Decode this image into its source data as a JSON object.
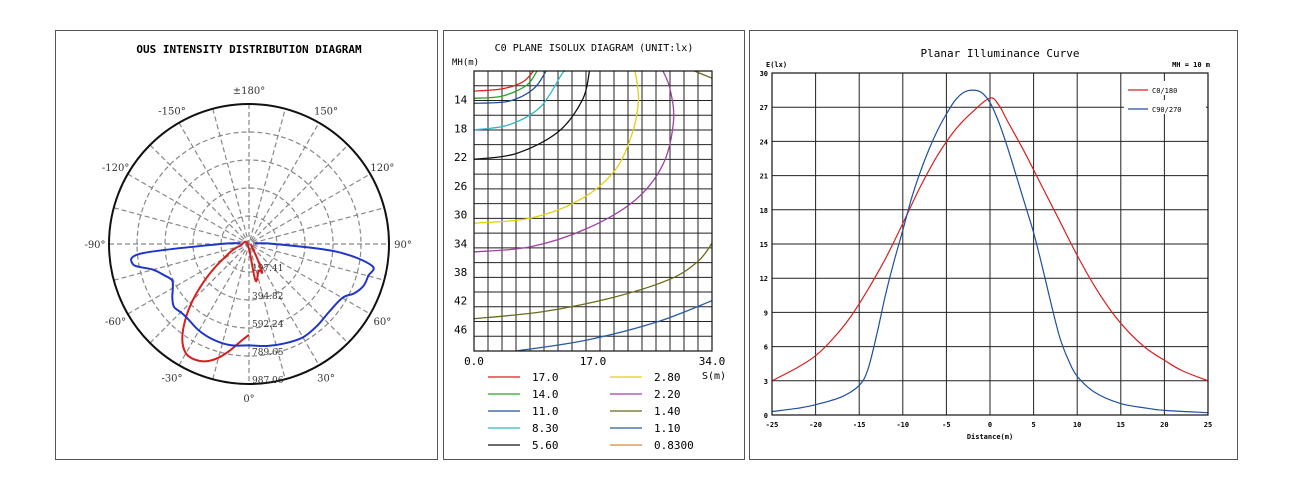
{
  "chart_data": [
    {
      "type": "polar",
      "title": "OUS INTENSITY DISTRIBUTION DIAGRAM",
      "angle_labels": [
        "±180°",
        "150°",
        "120°",
        "90°",
        "60°",
        "30°",
        "0°",
        "-30°",
        "-60°",
        "-90°",
        "-120°",
        "-150°"
      ],
      "radial_labels": [
        "197.41",
        "394.82",
        "592.24",
        "789.65",
        "987.06"
      ],
      "rmax": 987.06,
      "series": [
        {
          "color": "#d62020",
          "points": [
            [
              0,
              640
            ],
            [
              -5,
              690
            ],
            [
              -10,
              760
            ],
            [
              -15,
              830
            ],
            [
              -20,
              880
            ],
            [
              -25,
              900
            ],
            [
              -30,
              890
            ],
            [
              -35,
              820
            ],
            [
              -40,
              700
            ],
            [
              -45,
              560
            ],
            [
              -50,
              420
            ],
            [
              -55,
              300
            ],
            [
              -60,
              210
            ],
            [
              -70,
              120
            ],
            [
              -80,
              60
            ],
            [
              -90,
              10
            ],
            [
              10,
              260
            ],
            [
              20,
              200
            ],
            [
              25,
              220
            ],
            [
              30,
              110
            ],
            [
              40,
              40
            ],
            [
              60,
              20
            ],
            [
              90,
              10
            ]
          ]
        },
        {
          "color": "#1f35c8",
          "points": [
            [
              -95,
              60
            ],
            [
              -90,
              200
            ],
            [
              -85,
              760
            ],
            [
              -80,
              830
            ],
            [
              -75,
              700
            ],
            [
              -70,
              640
            ],
            [
              -65,
              600
            ],
            [
              -60,
              620
            ],
            [
              -55,
              660
            ],
            [
              -50,
              690
            ],
            [
              -45,
              680
            ],
            [
              -40,
              680
            ],
            [
              -30,
              705
            ],
            [
              -20,
              720
            ],
            [
              -10,
              725
            ],
            [
              0,
              715
            ],
            [
              10,
              730
            ],
            [
              20,
              745
            ],
            [
              30,
              760
            ],
            [
              40,
              750
            ],
            [
              50,
              740
            ],
            [
              60,
              760
            ],
            [
              65,
              820
            ],
            [
              70,
              860
            ],
            [
              75,
              870
            ],
            [
              80,
              880
            ],
            [
              85,
              620
            ],
            [
              90,
              180
            ],
            [
              95,
              40
            ]
          ]
        }
      ]
    },
    {
      "type": "line",
      "title": "C0 PLANE ISOLUX DIAGRAM (UNIT:lx)",
      "ylabel": "MH(m)",
      "xlabel": "S(m)",
      "x_ticks": [
        "0.0",
        "17.0",
        "34.0"
      ],
      "y_ticks": [
        "14",
        "18",
        "22",
        "26",
        "30",
        "34",
        "38",
        "42",
        "46"
      ],
      "xlim": [
        0,
        34
      ],
      "ylim": [
        10,
        49
      ],
      "legend": [
        {
          "label": "17.0",
          "color": "#d62020"
        },
        {
          "label": "14.0",
          "color": "#2aa02a"
        },
        {
          "label": "11.0",
          "color": "#1f4ea0"
        },
        {
          "label": "8.30",
          "color": "#33b6c8"
        },
        {
          "label": "5.60",
          "color": "#111111"
        },
        {
          "label": "2.80",
          "color": "#e0d010"
        },
        {
          "label": "2.20",
          "color": "#a040a0"
        },
        {
          "label": "1.40",
          "color": "#6b6b1a"
        },
        {
          "label": "1.10",
          "color": "#2a5aa0"
        },
        {
          "label": "0.8300",
          "color": "#d08a30"
        }
      ],
      "series": [
        {
          "color": "#d62020",
          "points": [
            [
              0,
              12.8
            ],
            [
              4,
              12.5
            ],
            [
              7,
              11.5
            ],
            [
              8.5,
              10
            ]
          ]
        },
        {
          "color": "#2aa02a",
          "points": [
            [
              0,
              13.8
            ],
            [
              4,
              13.5
            ],
            [
              7.5,
              12
            ],
            [
              9,
              10
            ]
          ]
        },
        {
          "color": "#1f4ea0",
          "points": [
            [
              0,
              14.5
            ],
            [
              5,
              14.2
            ],
            [
              8.5,
              12.5
            ],
            [
              10.3,
              10
            ]
          ]
        },
        {
          "color": "#33b6c8",
          "points": [
            [
              0,
              18.2
            ],
            [
              5,
              17.5
            ],
            [
              9.5,
              15
            ],
            [
              12.5,
              10.5
            ],
            [
              13,
              10
            ]
          ]
        },
        {
          "color": "#111111",
          "points": [
            [
              0,
              22.3
            ],
            [
              6,
              21.5
            ],
            [
              12,
              18.5
            ],
            [
              15.5,
              14
            ],
            [
              16.5,
              10
            ]
          ]
        },
        {
          "color": "#e0d010",
          "points": [
            [
              0,
              31.2
            ],
            [
              8,
              30.5
            ],
            [
              15,
              28
            ],
            [
              20,
              24
            ],
            [
              22.5,
              19
            ],
            [
              23.5,
              14
            ],
            [
              23,
              10
            ]
          ]
        },
        {
          "color": "#a040a0",
          "points": [
            [
              0,
              35.2
            ],
            [
              8,
              34.5
            ],
            [
              16,
              32
            ],
            [
              23,
              28
            ],
            [
              27,
              23
            ],
            [
              28.5,
              17
            ],
            [
              28,
              12.5
            ],
            [
              27,
              10
            ]
          ]
        },
        {
          "color": "#6b6b1a",
          "points": [
            [
              0,
              44.5
            ],
            [
              10,
              43.5
            ],
            [
              20,
              41.5
            ],
            [
              28,
              39
            ],
            [
              32,
              36.5
            ],
            [
              34,
              34
            ]
          ]
        },
        {
          "color": "#2a5aa0",
          "points": [
            [
              6,
              49
            ],
            [
              16,
              47.5
            ],
            [
              26,
              45
            ],
            [
              34,
              42
            ]
          ]
        },
        {
          "color": "#6b6b1a",
          "points": [
            [
              31.5,
              10
            ],
            [
              34,
              11
            ]
          ]
        }
      ]
    },
    {
      "type": "line",
      "title": "Planar Illuminance Curve",
      "ylabel": "E(lx)",
      "xlabel": "Distance(m)",
      "annotation": "MH = 10 m",
      "xlim": [
        -25,
        25
      ],
      "ylim": [
        0,
        30
      ],
      "x_ticks": [
        -25,
        -20,
        -15,
        -10,
        -5,
        0,
        5,
        10,
        15,
        20,
        25
      ],
      "y_ticks": [
        0,
        3,
        6,
        9,
        12,
        15,
        18,
        21,
        24,
        27,
        30
      ],
      "legend": [
        {
          "label": "C0/180",
          "color": "#d62020"
        },
        {
          "label": "C90/270",
          "color": "#1f4ea0"
        }
      ],
      "series": [
        {
          "name": "C0/180",
          "color": "#d62020",
          "points": [
            [
              -25,
              3.0
            ],
            [
              -22,
              4.2
            ],
            [
              -20,
              5.2
            ],
            [
              -18,
              6.7
            ],
            [
              -16,
              8.6
            ],
            [
              -14,
              11.0
            ],
            [
              -12,
              13.7
            ],
            [
              -10,
              16.8
            ],
            [
              -8,
              20.0
            ],
            [
              -6,
              22.8
            ],
            [
              -4,
              25.0
            ],
            [
              -2,
              26.6
            ],
            [
              0,
              27.8
            ],
            [
              1,
              27.2
            ],
            [
              2,
              25.8
            ],
            [
              4,
              23.0
            ],
            [
              6,
              20.0
            ],
            [
              8,
              17.0
            ],
            [
              10,
              14.0
            ],
            [
              12,
              11.3
            ],
            [
              14,
              9.0
            ],
            [
              16,
              7.2
            ],
            [
              18,
              5.8
            ],
            [
              20,
              4.8
            ],
            [
              22,
              3.9
            ],
            [
              25,
              3.0
            ]
          ]
        },
        {
          "name": "C90/270",
          "color": "#1f4ea0",
          "points": [
            [
              -25,
              0.3
            ],
            [
              -22,
              0.6
            ],
            [
              -20,
              0.9
            ],
            [
              -17,
              1.6
            ],
            [
              -15,
              2.6
            ],
            [
              -14,
              4.0
            ],
            [
              -13,
              7.0
            ],
            [
              -12,
              10.5
            ],
            [
              -11,
              13.5
            ],
            [
              -10,
              16.2
            ],
            [
              -9,
              19.0
            ],
            [
              -8,
              21.3
            ],
            [
              -7,
              23.3
            ],
            [
              -6,
              25.0
            ],
            [
              -5,
              26.4
            ],
            [
              -4,
              27.6
            ],
            [
              -3,
              28.3
            ],
            [
              -2,
              28.5
            ],
            [
              -1,
              28.3
            ],
            [
              0,
              27.4
            ],
            [
              1,
              25.7
            ],
            [
              2,
              23.5
            ],
            [
              3,
              21.0
            ],
            [
              4,
              18.5
            ],
            [
              5,
              16.0
            ],
            [
              6,
              13.0
            ],
            [
              7,
              9.8
            ],
            [
              8,
              6.8
            ],
            [
              9,
              4.8
            ],
            [
              10,
              3.4
            ],
            [
              12,
              2.0
            ],
            [
              15,
              1.0
            ],
            [
              18,
              0.6
            ],
            [
              20,
              0.4
            ],
            [
              25,
              0.2
            ]
          ]
        }
      ]
    }
  ]
}
